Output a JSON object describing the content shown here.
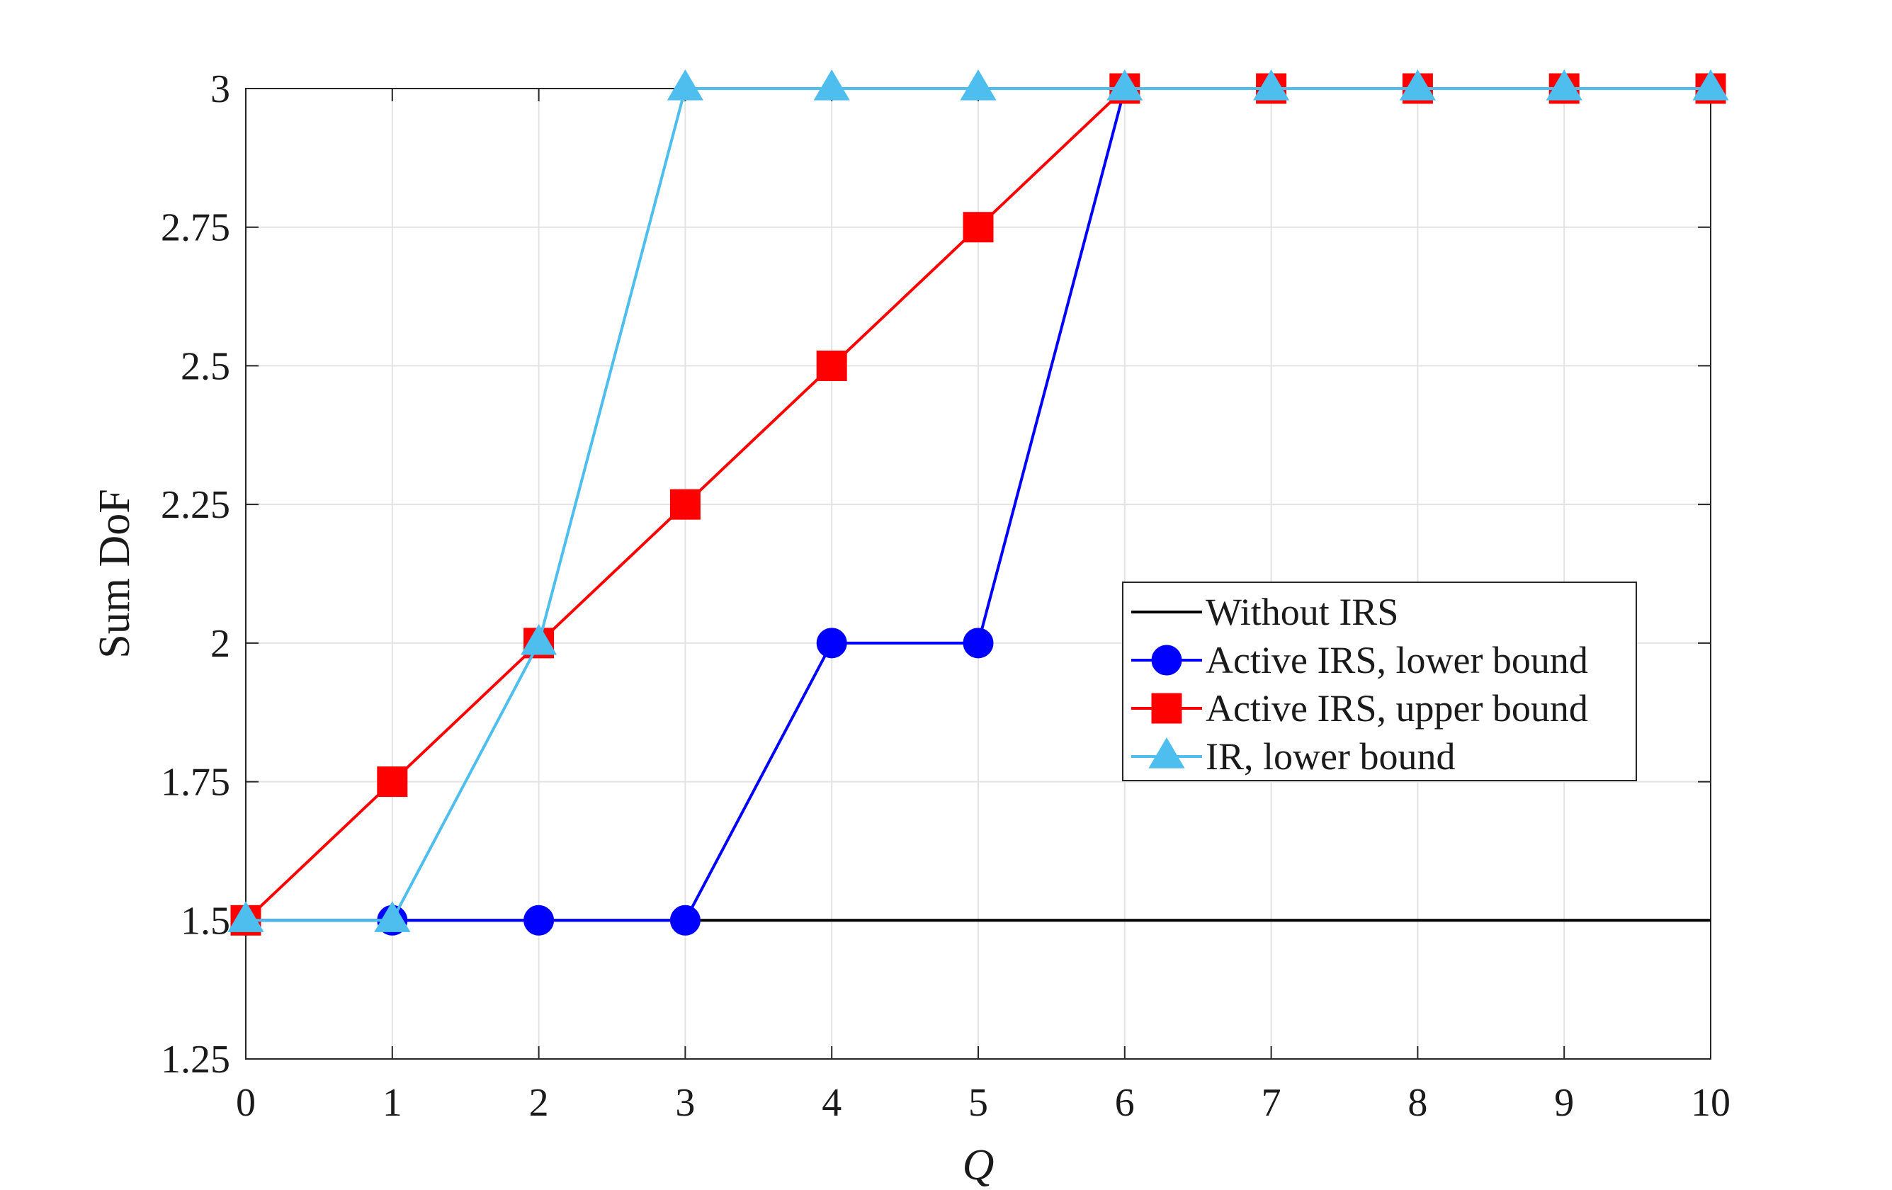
{
  "chart_data": {
    "type": "line",
    "xlabel": "Q",
    "ylabel": "Sum DoF",
    "xlim": [
      0,
      10
    ],
    "ylim": [
      1.25,
      3
    ],
    "xticks": [
      "0",
      "1",
      "2",
      "3",
      "4",
      "5",
      "6",
      "7",
      "8",
      "9",
      "10"
    ],
    "yticks": [
      "1.25",
      "1.5",
      "1.75",
      "2",
      "2.25",
      "2.5",
      "2.75",
      "3"
    ],
    "grid": true,
    "legend_position": "center-right",
    "x": [
      0,
      1,
      2,
      3,
      4,
      5,
      6,
      7,
      8,
      9,
      10
    ],
    "series": [
      {
        "name": "Without IRS",
        "color": "#000000",
        "marker": "none",
        "values": [
          1.5,
          1.5,
          1.5,
          1.5,
          1.5,
          1.5,
          1.5,
          1.5,
          1.5,
          1.5,
          1.5
        ]
      },
      {
        "name": "Active IRS, lower bound",
        "color": "#0000ff",
        "marker": "circle",
        "values": [
          1.5,
          1.5,
          1.5,
          1.5,
          2,
          2,
          3,
          3,
          3,
          3,
          3
        ]
      },
      {
        "name": "Active IRS, upper bound",
        "color": "#ff0000",
        "marker": "square",
        "values": [
          1.5,
          1.75,
          2,
          2.25,
          2.5,
          2.75,
          3,
          3,
          3,
          3,
          3
        ]
      },
      {
        "name": "IR, lower bound",
        "color": "#4dbeee",
        "marker": "triangle",
        "values": [
          1.5,
          1.5,
          2,
          3,
          3,
          3,
          3,
          3,
          3,
          3,
          3
        ]
      }
    ]
  }
}
